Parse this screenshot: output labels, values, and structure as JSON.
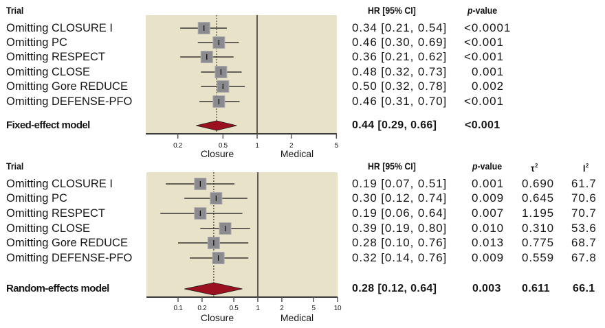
{
  "chart_data": [
    {
      "type": "forest",
      "x_scale": "log",
      "xlim": [
        0.1,
        5
      ],
      "reference_line": 1,
      "xticks": [
        0.2,
        0.5,
        1,
        2,
        5
      ],
      "xtick_labels": [
        "0.2",
        "0.5",
        "1",
        "2",
        "5"
      ],
      "xlabel_left": "Closure",
      "xlabel_right": "Medical",
      "columns": {
        "trial": "Trial",
        "hr_ci": "HR [95% CI]",
        "p_symbol": "p",
        "p_suffix": "-value"
      },
      "rows": [
        {
          "label": "Omitting CLOSURE I",
          "hr": 0.34,
          "lo": 0.21,
          "hi": 0.54,
          "hr_ci": "0.34 [0.21, 0.54]",
          "p": "<0.0001"
        },
        {
          "label": "Omitting PC",
          "hr": 0.46,
          "lo": 0.3,
          "hi": 0.69,
          "hr_ci": "0.46 [0.30, 0.69]",
          "p": "<0.001"
        },
        {
          "label": "Omitting RESPECT",
          "hr": 0.36,
          "lo": 0.21,
          "hi": 0.62,
          "hr_ci": "0.36 [0.21, 0.62]",
          "p": "<0.001"
        },
        {
          "label": "Omitting CLOSE",
          "hr": 0.48,
          "lo": 0.32,
          "hi": 0.73,
          "hr_ci": "0.48 [0.32, 0.73]",
          "p": "0.001"
        },
        {
          "label": "Omitting Gore REDUCE",
          "hr": 0.5,
          "lo": 0.32,
          "hi": 0.78,
          "hr_ci": "0.50 [0.32, 0.78]",
          "p": "0.002"
        },
        {
          "label": "Omitting DEFENSE-PFO",
          "hr": 0.46,
          "lo": 0.31,
          "hi": 0.7,
          "hr_ci": "0.46 [0.31, 0.70]",
          "p": "<0.001"
        }
      ],
      "summary": {
        "label": "Fixed-effect model",
        "hr": 0.44,
        "lo": 0.29,
        "hi": 0.66,
        "hr_ci": "0.44 [0.29, 0.66]",
        "p": "<0.001"
      }
    },
    {
      "type": "forest",
      "x_scale": "log",
      "xlim": [
        0.04,
        10
      ],
      "reference_line": 1,
      "xticks": [
        0.1,
        0.2,
        0.5,
        1,
        2,
        5,
        10
      ],
      "xtick_labels": [
        "0.1",
        "0.2",
        "0.5",
        "1",
        "2",
        "5",
        "10"
      ],
      "xlabel_left": "Closure",
      "xlabel_right": "Medical",
      "columns": {
        "trial": "Trial",
        "hr_ci": "HR [95% CI]",
        "p_symbol": "p",
        "p_suffix": "-value",
        "tau_symbol": "τ",
        "tau_sup": "2",
        "i_symbol": "I",
        "i_sup": "2"
      },
      "rows": [
        {
          "label": "Omitting CLOSURE I",
          "hr": 0.19,
          "lo": 0.07,
          "hi": 0.51,
          "hr_ci": "0.19 [0.07, 0.51]",
          "p": "0.001",
          "tau2": "0.690",
          "i2": "61.7"
        },
        {
          "label": "Omitting PC",
          "hr": 0.3,
          "lo": 0.12,
          "hi": 0.74,
          "hr_ci": "0.30 [0.12, 0.74]",
          "p": "0.009",
          "tau2": "0.645",
          "i2": "70.6"
        },
        {
          "label": "Omitting RESPECT",
          "hr": 0.19,
          "lo": 0.06,
          "hi": 0.64,
          "hr_ci": "0.19 [0.06, 0.64]",
          "p": "0.007",
          "tau2": "1.195",
          "i2": "70.7"
        },
        {
          "label": "Omitting CLOSE",
          "hr": 0.39,
          "lo": 0.19,
          "hi": 0.8,
          "hr_ci": "0.39 [0.19, 0.80]",
          "p": "0.010",
          "tau2": "0.310",
          "i2": "53.6"
        },
        {
          "label": "Omitting Gore REDUCE",
          "hr": 0.28,
          "lo": 0.1,
          "hi": 0.76,
          "hr_ci": "0.28 [0.10, 0.76]",
          "p": "0.013",
          "tau2": "0.775",
          "i2": "68.7"
        },
        {
          "label": "Omitting DEFENSE-PFO",
          "hr": 0.32,
          "lo": 0.14,
          "hi": 0.76,
          "hr_ci": "0.32 [0.14, 0.76]",
          "p": "0.009",
          "tau2": "0.559",
          "i2": "67.8"
        }
      ],
      "summary": {
        "label": "Random-effects model",
        "hr": 0.28,
        "lo": 0.12,
        "hi": 0.64,
        "hr_ci": "0.28 [0.12, 0.64]",
        "p": "0.003",
        "tau2": "0.611",
        "i2": "66.1"
      }
    }
  ],
  "colors": {
    "panel_background": "#e8e2c8",
    "square_fill": "#8b8b8f",
    "diamond_fill": "#9b1120",
    "summary_line": "#6b634e"
  }
}
